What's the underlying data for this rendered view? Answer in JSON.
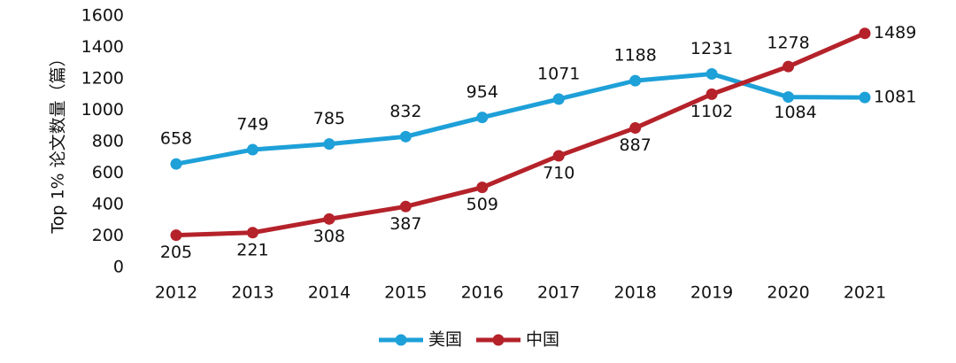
{
  "chart_data": {
    "type": "line",
    "y_label": "Top 1% 论文数量（篇）",
    "categories": [
      "2012",
      "2013",
      "2014",
      "2015",
      "2016",
      "2017",
      "2018",
      "2019",
      "2020",
      "2021"
    ],
    "series": [
      {
        "name": "美国",
        "color": "#1ea0d8",
        "values": [
          658,
          749,
          785,
          832,
          954,
          1071,
          1188,
          1231,
          1084,
          1081
        ]
      },
      {
        "name": "中国",
        "color": "#b5222a",
        "values": [
          205,
          221,
          308,
          387,
          509,
          710,
          887,
          1102,
          1278,
          1489
        ]
      }
    ],
    "ylim": [
      0,
      1600
    ],
    "yticks": [
      0,
      200,
      400,
      600,
      800,
      1000,
      1200,
      1400,
      1600
    ],
    "grid": false
  }
}
